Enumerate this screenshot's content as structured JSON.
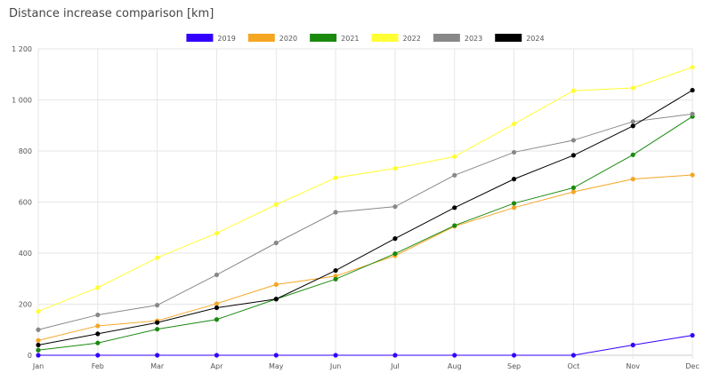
{
  "chart_data": {
    "type": "line",
    "title": "Distance increase comparison [km]",
    "xlabel": "",
    "ylabel": "",
    "categories": [
      "Jan",
      "Feb",
      "Mar",
      "Apr",
      "May",
      "Jun",
      "Jul",
      "Aug",
      "Sep",
      "Oct",
      "Nov",
      "Dec"
    ],
    "ylim": [
      0,
      1200
    ],
    "yticks": [
      0,
      200,
      400,
      600,
      800,
      1000,
      1200
    ],
    "ytick_labels": [
      "0",
      "200",
      "400",
      "600",
      "800",
      "1 000",
      "1 200"
    ],
    "grid": true,
    "legend_position": "top-center",
    "series": [
      {
        "name": "2019",
        "color": "#3300ff",
        "values": [
          0,
          0,
          0,
          0,
          0,
          0,
          0,
          0,
          0,
          0,
          40,
          78
        ]
      },
      {
        "name": "2020",
        "color": "#f5a623",
        "values": [
          58,
          115,
          135,
          202,
          277,
          310,
          390,
          505,
          578,
          640,
          690,
          706
        ]
      },
      {
        "name": "2021",
        "color": "#1a8a0f",
        "values": [
          20,
          48,
          102,
          140,
          220,
          298,
          398,
          508,
          595,
          656,
          785,
          935
        ]
      },
      {
        "name": "2022",
        "color": "#ffff33",
        "values": [
          172,
          265,
          382,
          478,
          590,
          695,
          732,
          778,
          906,
          1036,
          1047,
          1128
        ]
      },
      {
        "name": "2023",
        "color": "#888888",
        "values": [
          100,
          158,
          196,
          315,
          440,
          560,
          582,
          705,
          795,
          842,
          915,
          945
        ]
      },
      {
        "name": "2024",
        "color": "#000000",
        "values": [
          40,
          84,
          128,
          186,
          220,
          332,
          457,
          578,
          690,
          783,
          898,
          1038
        ]
      }
    ]
  }
}
